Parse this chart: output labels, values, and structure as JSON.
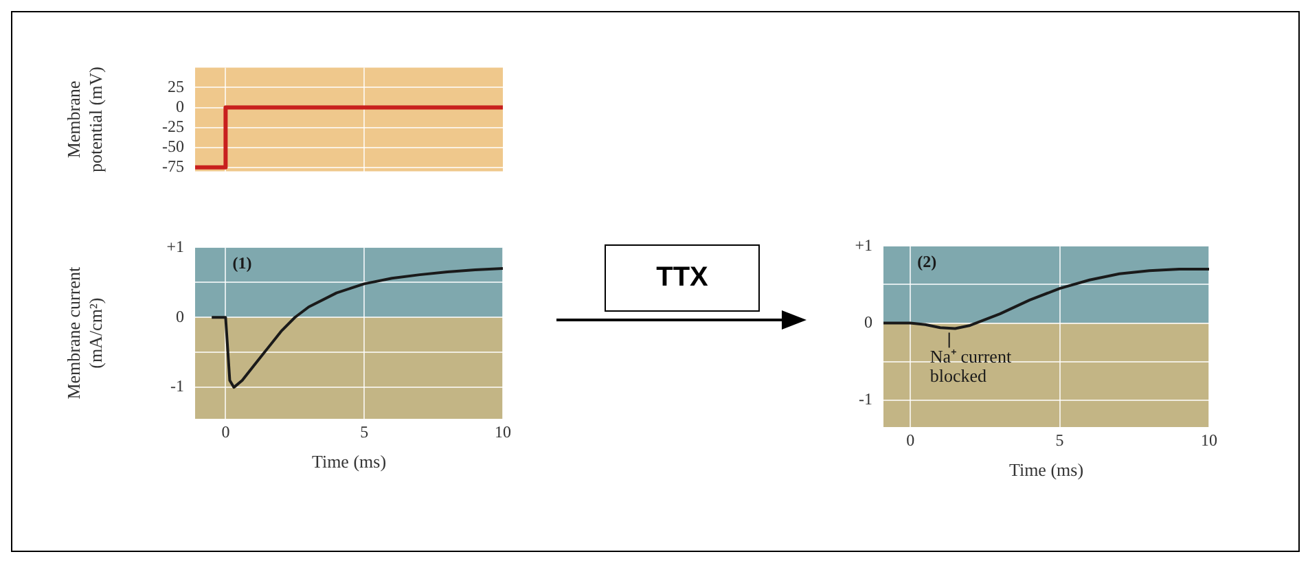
{
  "chart_data": [
    {
      "type": "step",
      "ylabel": "Membrane potential (mV)",
      "xlim": [
        -1.1,
        10
      ],
      "xticks": [
        0,
        5
      ],
      "ylim": [
        -80,
        50
      ],
      "yticks": [
        25,
        0,
        -25,
        -50,
        -75
      ],
      "tick_labels": "y",
      "grid": true,
      "bands": [
        {
          "axis": "y",
          "from": -80,
          "to": 50,
          "color": "#efc88c"
        }
      ],
      "series": [
        {
          "color": "#c8201e",
          "x": [
            -1.1,
            0,
            10
          ],
          "values": [
            -75,
            0,
            0
          ]
        }
      ]
    },
    {
      "type": "line",
      "ylabel": "Membrane current (mA/cm²)",
      "xlabel": "Time (ms)",
      "xlim": [
        -1.1,
        10
      ],
      "xticks": [
        0,
        5,
        10
      ],
      "ylim": [
        -1.45,
        1
      ],
      "yticks": [
        {
          "value": 1,
          "label": "+1"
        },
        {
          "value": 0.5,
          "label": null
        },
        0,
        {
          "value": -0.5,
          "label": null
        },
        -1
      ],
      "grid": true,
      "bands": [
        {
          "axis": "y",
          "from": 0,
          "to": 1,
          "color": "#7fa8ae"
        },
        {
          "axis": "y",
          "from": -1.45,
          "to": 0,
          "color": "#c3b585"
        }
      ],
      "annotations": [
        "(1)"
      ],
      "series": [
        {
          "color": "#1a1a1a",
          "x": [
            -0.5,
            0,
            0.05,
            0.15,
            0.3,
            0.6,
            1,
            1.5,
            2,
            2.5,
            3,
            4,
            5,
            6,
            7,
            8,
            9,
            10
          ],
          "values": [
            0,
            0,
            -0.3,
            -0.9,
            -1,
            -0.9,
            -0.7,
            -0.45,
            -0.2,
            0,
            0.15,
            0.35,
            0.48,
            0.56,
            0.61,
            0.65,
            0.68,
            0.7
          ]
        }
      ]
    },
    {
      "type": "line",
      "xlabel": "Time (ms)",
      "xlim": [
        -0.9,
        10
      ],
      "xticks": [
        0,
        5,
        10
      ],
      "ylim": [
        -1.35,
        1
      ],
      "yticks": [
        {
          "value": 1,
          "label": "+1"
        },
        {
          "value": 0.5,
          "label": null
        },
        0,
        {
          "value": -0.5,
          "label": null
        },
        -1
      ],
      "grid": true,
      "bands": [
        {
          "axis": "y",
          "from": 0,
          "to": 1,
          "color": "#7fa8ae"
        },
        {
          "axis": "y",
          "from": -1.35,
          "to": 0,
          "color": "#c3b585"
        }
      ],
      "annotations": [
        "(2)",
        {
          "text": "Na⁺ current blocked",
          "x": 1.3,
          "y": -0.07
        },
        "TTX"
      ],
      "series": [
        {
          "color": "#1a1a1a",
          "x": [
            -0.9,
            0,
            0.5,
            1,
            1.5,
            2,
            3,
            4,
            5,
            6,
            7,
            8,
            9,
            10
          ],
          "values": [
            0,
            0,
            -0.02,
            -0.06,
            -0.07,
            -0.03,
            0.12,
            0.3,
            0.45,
            0.56,
            0.64,
            0.68,
            0.7,
            0.7
          ]
        }
      ]
    }
  ]
}
